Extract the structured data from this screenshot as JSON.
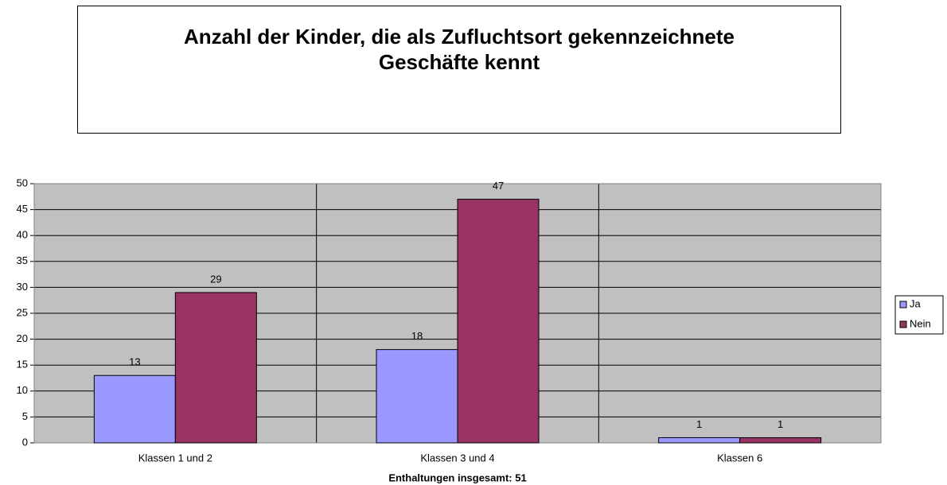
{
  "chart_data": {
    "type": "bar",
    "title": "Anzahl der Kinder, die als Zufluchtsort gekennzeichnete Geschäfte kennt",
    "xlabel": "Enthaltungen insgesamt: 51",
    "categories": [
      "Klassen 1 und 2",
      "Klassen 3 und 4",
      "Klassen 6"
    ],
    "series": [
      {
        "name": "Ja",
        "color": "#9999ff",
        "values": [
          13,
          18,
          1
        ]
      },
      {
        "name": "Nein",
        "color": "#993366",
        "values": [
          29,
          47,
          1
        ]
      }
    ],
    "ylim": [
      0,
      50
    ],
    "yticks": [
      0,
      5,
      10,
      15,
      20,
      25,
      30,
      35,
      40,
      45,
      50
    ],
    "grid": true,
    "legend": "right"
  }
}
